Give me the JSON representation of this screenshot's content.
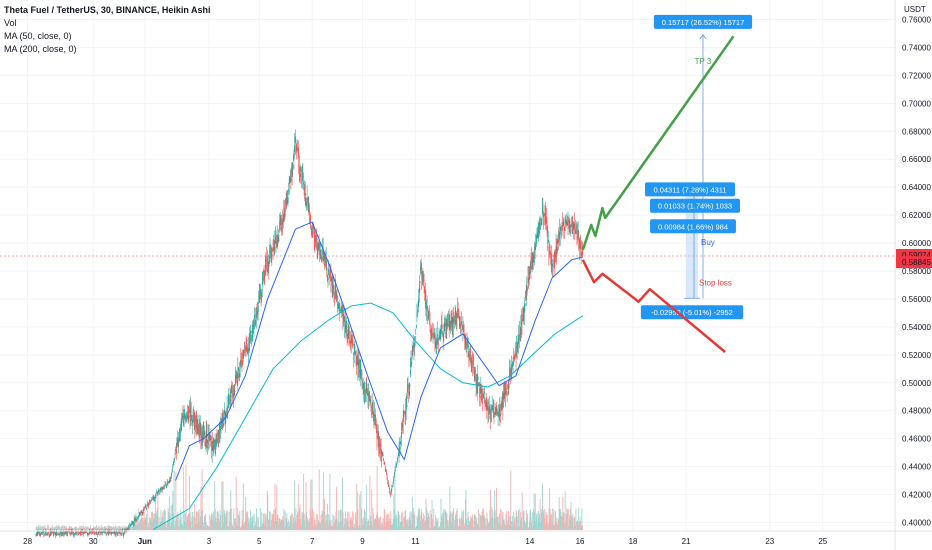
{
  "legend": {
    "title": "Theta Fuel / TetherUS, 30, BINANCE, Heikin Ashi",
    "vol": "Vol",
    "ma50": "MA (50, close, 0)",
    "ma200": "MA (200, close, 0)"
  },
  "currency": "USDT",
  "colors": {
    "up": "#26a69a",
    "down": "#ef5350",
    "ma50": "#2962ff",
    "ma200": "#00bcd4",
    "long_path": "#43a047",
    "short_path": "#e53935",
    "tag_bg": "#2196f3",
    "price_tag": "#f23645",
    "price_line": "#f7a3a3"
  },
  "price_tags": [
    "0.59074",
    "0.58845"
  ],
  "chart_data": {
    "type": "candlestick",
    "y_axis": {
      "min": 0.395,
      "max": 0.77,
      "ticks": [
        "0.76000",
        "0.74000",
        "0.72000",
        "0.70000",
        "0.68000",
        "0.66000",
        "0.64000",
        "0.62000",
        "0.60000",
        "0.58000",
        "0.56000",
        "0.54000",
        "0.52000",
        "0.50000",
        "0.48000",
        "0.46000",
        "0.44000",
        "0.42000",
        "0.40000"
      ]
    },
    "x_axis": {
      "ticks": [
        "28",
        "30",
        "Jun",
        "3",
        "5",
        "7",
        "9",
        "11",
        "14",
        "16",
        "18",
        "21",
        "23",
        "25"
      ]
    },
    "price_path": [
      {
        "day": 0,
        "price": 0.392
      },
      {
        "day": 3.2,
        "price": 0.393
      },
      {
        "day": 4.3,
        "price": 0.42
      },
      {
        "day": 4.8,
        "price": 0.43
      },
      {
        "day": 5.2,
        "price": 0.47
      },
      {
        "day": 5.5,
        "price": 0.48
      },
      {
        "day": 6.0,
        "price": 0.46
      },
      {
        "day": 6.4,
        "price": 0.455
      },
      {
        "day": 6.9,
        "price": 0.485
      },
      {
        "day": 7.3,
        "price": 0.51
      },
      {
        "day": 7.8,
        "price": 0.54
      },
      {
        "day": 8.2,
        "price": 0.58
      },
      {
        "day": 8.6,
        "price": 0.6
      },
      {
        "day": 9.0,
        "price": 0.63
      },
      {
        "day": 9.3,
        "price": 0.67
      },
      {
        "day": 9.6,
        "price": 0.64
      },
      {
        "day": 9.9,
        "price": 0.61
      },
      {
        "day": 10.3,
        "price": 0.59
      },
      {
        "day": 10.7,
        "price": 0.565
      },
      {
        "day": 11.0,
        "price": 0.545
      },
      {
        "day": 11.4,
        "price": 0.525
      },
      {
        "day": 11.7,
        "price": 0.5
      },
      {
        "day": 12.0,
        "price": 0.485
      },
      {
        "day": 12.4,
        "price": 0.45
      },
      {
        "day": 12.7,
        "price": 0.42
      },
      {
        "day": 13.0,
        "price": 0.45
      },
      {
        "day": 13.3,
        "price": 0.49
      },
      {
        "day": 13.6,
        "price": 0.535
      },
      {
        "day": 13.8,
        "price": 0.585
      },
      {
        "day": 14.0,
        "price": 0.55
      },
      {
        "day": 14.3,
        "price": 0.53
      },
      {
        "day": 14.7,
        "price": 0.54
      },
      {
        "day": 15.1,
        "price": 0.548
      },
      {
        "day": 15.4,
        "price": 0.53
      },
      {
        "day": 15.8,
        "price": 0.5
      },
      {
        "day": 16.2,
        "price": 0.482
      },
      {
        "day": 16.6,
        "price": 0.478
      },
      {
        "day": 16.9,
        "price": 0.5
      },
      {
        "day": 17.3,
        "price": 0.53
      },
      {
        "day": 17.6,
        "price": 0.57
      },
      {
        "day": 17.9,
        "price": 0.6
      },
      {
        "day": 18.2,
        "price": 0.625
      },
      {
        "day": 18.5,
        "price": 0.58
      },
      {
        "day": 18.8,
        "price": 0.61
      },
      {
        "day": 19.2,
        "price": 0.615
      },
      {
        "day": 19.6,
        "price": 0.595
      }
    ],
    "ma50": [
      {
        "day": 5.0,
        "price": 0.43
      },
      {
        "day": 5.5,
        "price": 0.455
      },
      {
        "day": 6.0,
        "price": 0.46
      },
      {
        "day": 6.8,
        "price": 0.475
      },
      {
        "day": 7.5,
        "price": 0.505
      },
      {
        "day": 8.3,
        "price": 0.56
      },
      {
        "day": 9.3,
        "price": 0.61
      },
      {
        "day": 9.9,
        "price": 0.615
      },
      {
        "day": 10.5,
        "price": 0.585
      },
      {
        "day": 11.2,
        "price": 0.545
      },
      {
        "day": 11.8,
        "price": 0.51
      },
      {
        "day": 12.6,
        "price": 0.465
      },
      {
        "day": 13.2,
        "price": 0.445
      },
      {
        "day": 13.8,
        "price": 0.49
      },
      {
        "day": 14.5,
        "price": 0.525
      },
      {
        "day": 15.3,
        "price": 0.535
      },
      {
        "day": 16.0,
        "price": 0.515
      },
      {
        "day": 16.6,
        "price": 0.498
      },
      {
        "day": 17.2,
        "price": 0.505
      },
      {
        "day": 17.9,
        "price": 0.545
      },
      {
        "day": 18.5,
        "price": 0.575
      },
      {
        "day": 19.2,
        "price": 0.588
      },
      {
        "day": 19.6,
        "price": 0.59
      }
    ],
    "ma200": [
      {
        "day": 4.2,
        "price": 0.395
      },
      {
        "day": 5.5,
        "price": 0.41
      },
      {
        "day": 6.5,
        "price": 0.44
      },
      {
        "day": 7.5,
        "price": 0.475
      },
      {
        "day": 8.5,
        "price": 0.51
      },
      {
        "day": 9.5,
        "price": 0.53
      },
      {
        "day": 10.5,
        "price": 0.545
      },
      {
        "day": 11.3,
        "price": 0.555
      },
      {
        "day": 12.0,
        "price": 0.557
      },
      {
        "day": 12.8,
        "price": 0.55
      },
      {
        "day": 13.6,
        "price": 0.53
      },
      {
        "day": 14.5,
        "price": 0.51
      },
      {
        "day": 15.3,
        "price": 0.5
      },
      {
        "day": 16.2,
        "price": 0.497
      },
      {
        "day": 17.0,
        "price": 0.505
      },
      {
        "day": 17.8,
        "price": 0.52
      },
      {
        "day": 18.6,
        "price": 0.535
      },
      {
        "day": 19.6,
        "price": 0.548
      }
    ],
    "long_path": [
      {
        "day": 19.6,
        "price": 0.595
      },
      {
        "day": 19.9,
        "price": 0.613
      },
      {
        "day": 20.05,
        "price": 0.605
      },
      {
        "day": 20.3,
        "price": 0.625
      },
      {
        "day": 20.4,
        "price": 0.618
      },
      {
        "day": 25.0,
        "price": 0.748
      }
    ],
    "short_path": [
      {
        "day": 19.6,
        "price": 0.588
      },
      {
        "day": 20.0,
        "price": 0.572
      },
      {
        "day": 20.3,
        "price": 0.578
      },
      {
        "day": 21.6,
        "price": 0.558
      },
      {
        "day": 22.0,
        "price": 0.567
      },
      {
        "day": 24.7,
        "price": 0.522
      }
    ],
    "annotations": {
      "tp_box": "0.15717 (26.52%) 15717",
      "tp_label": "TP 3",
      "box1": "0.04311 (7.28%) 4311",
      "box2": "0.01033 (1.74%) 1033",
      "box3": "0.00984 (1.66%) 984",
      "buy_label": "Buy",
      "stop_label": "Stop loss",
      "sl_box": "-0.02952 (-5.01%) -2952"
    },
    "annotation_levels": {
      "tp": 0.749,
      "box1": 0.637,
      "box2": 0.626,
      "box3": 0.612,
      "sl": 0.5605,
      "entry": 0.5905
    }
  }
}
